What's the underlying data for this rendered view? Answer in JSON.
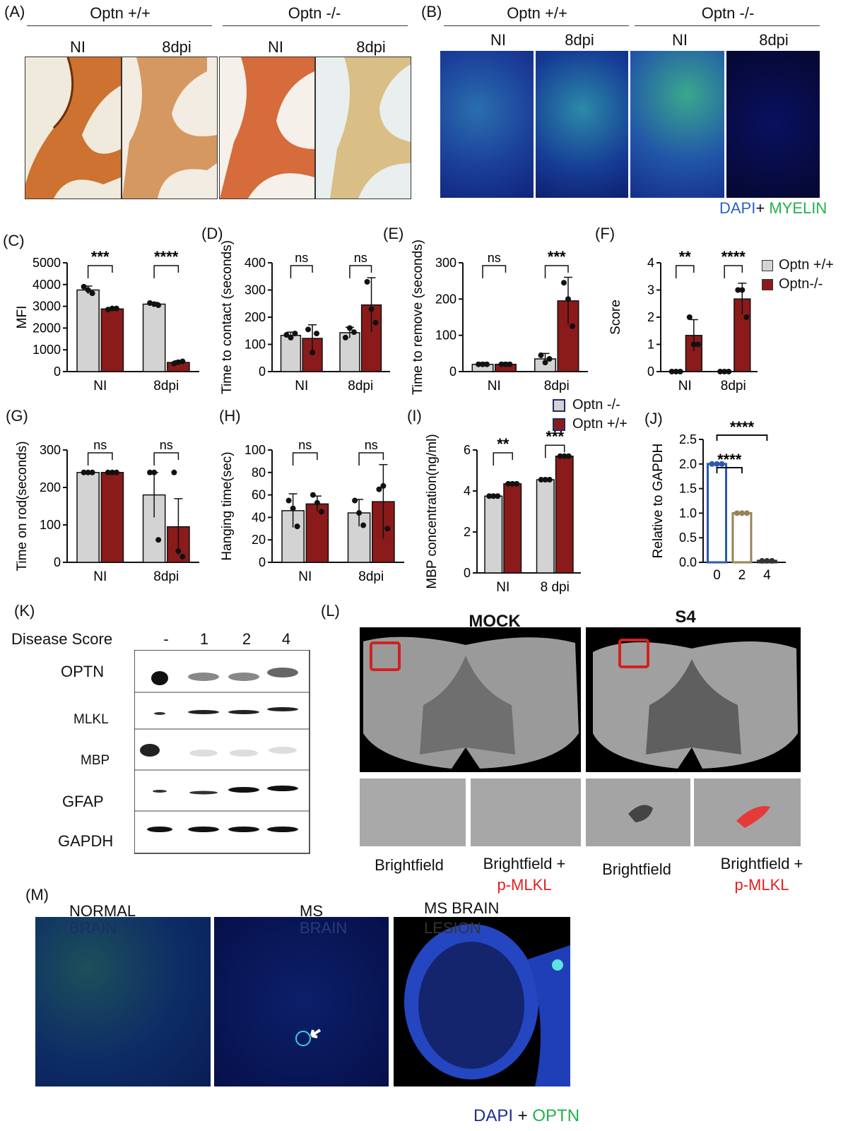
{
  "panel_labels": {
    "A": "(A)",
    "B": "(B)",
    "C": "(C)",
    "D": "(D)",
    "E": "(E)",
    "F": "(F)",
    "G": "(G)",
    "H": "(H)",
    "I": "(I)",
    "J": "(J)",
    "K": "(K)",
    "L": "(L)",
    "M": "(M)"
  },
  "panelA": {
    "group1": "Optn +/+",
    "group2": "Optn -/-",
    "ni": "NI",
    "dpi": "8dpi"
  },
  "panelB": {
    "group1": "Optn +/+",
    "group2": "Optn -/-",
    "ni": "NI",
    "dpi": "8dpi",
    "stain_dapi": "DAPI",
    "stain_plus": "+",
    "stain_myelin": " MYELIN"
  },
  "legend_top": {
    "item1": "Optn +/+",
    "item2": "Optn-/-",
    "color1": "#d3d3d3",
    "color2": "#8b1a1a"
  },
  "legend_mid": {
    "item1": "Optn -/-",
    "item2": "Optn +/+"
  },
  "panelK": {
    "header": "Disease Score",
    "lanes": [
      "-",
      "1",
      "2",
      "4"
    ],
    "rows": [
      "OPTN",
      "MLKL",
      "MBP",
      "GFAP",
      "GAPDH"
    ]
  },
  "panelL": {
    "mock": "MOCK",
    "s4": "S4",
    "bf1": "Brightfield",
    "bf2": "Brightfield +",
    "pmlkl": "p-MLKL",
    "bf3": "Brightfield",
    "bf4": "Brightfield +",
    "pmlkl2": "p-MLKL"
  },
  "panelM": {
    "t1a": "NORMAL",
    "t1b": "BRAIN",
    "t2a": "MS",
    "t2b": "BRAIN",
    "t3a": "MS BRAIN",
    "t3b": "LESION",
    "stain_dapi": "DAPI",
    "stain_plus": " + ",
    "stain_optn": "OPTN"
  },
  "chart_data": [
    {
      "id": "C",
      "type": "bar",
      "categories": [
        "NI",
        "8dpi"
      ],
      "ylabel": "MFI",
      "ylim": [
        0,
        5000
      ],
      "yticks": [
        0,
        1000,
        2000,
        3000,
        4000,
        5000
      ],
      "series": [
        {
          "values": [
            3750,
            3100
          ],
          "err": [
            180,
            80
          ],
          "points": [
            [
              3900,
              3750,
              3600
            ],
            [
              3150,
              3100,
              3050
            ]
          ]
        },
        {
          "values": [
            2880,
            420
          ],
          "err": [
            60,
            80
          ],
          "points": [
            [
              2850,
              2900,
              2900
            ],
            [
              370,
              430,
              470
            ]
          ]
        }
      ],
      "significance": [
        "***",
        "****"
      ]
    },
    {
      "id": "D",
      "type": "bar",
      "categories": [
        "NI",
        "8dpi"
      ],
      "ylabel": "Time to contact (seconds)",
      "ylim": [
        0,
        400
      ],
      "yticks": [
        0,
        100,
        200,
        300,
        400
      ],
      "series": [
        {
          "values": [
            133,
            143
          ],
          "err": [
            12,
            20
          ],
          "points": [
            [
              135,
              125,
              140
            ],
            [
              125,
              160,
              145
            ]
          ]
        },
        {
          "values": [
            122,
            245
          ],
          "err": [
            50,
            100
          ],
          "points": [
            [
              155,
              70,
              140
            ],
            [
              330,
              230,
              180
            ]
          ]
        }
      ],
      "significance": [
        "ns",
        "ns"
      ]
    },
    {
      "id": "E",
      "type": "bar",
      "categories": [
        "NI",
        "8dpi"
      ],
      "ylabel": "Time to remove (seconds)",
      "ylim": [
        0,
        300
      ],
      "yticks": [
        0,
        100,
        200,
        300
      ],
      "series": [
        {
          "values": [
            20,
            35
          ],
          "err": [
            5,
            15
          ],
          "points": [
            [
              20,
              20,
              20
            ],
            [
              45,
              25,
              35
            ]
          ]
        },
        {
          "values": [
            20,
            195
          ],
          "err": [
            5,
            65
          ],
          "points": [
            [
              20,
              20,
              20
            ],
            [
              245,
              200,
              125
            ]
          ]
        }
      ],
      "significance": [
        "ns",
        "***"
      ]
    },
    {
      "id": "F",
      "type": "bar",
      "categories": [
        "NI",
        "8dpi"
      ],
      "ylabel": "Score",
      "ylim": [
        0,
        4
      ],
      "yticks": [
        0,
        1,
        2,
        3,
        4
      ],
      "series": [
        {
          "values": [
            0,
            0
          ],
          "err": [
            0,
            0
          ],
          "points": [
            [
              0,
              0,
              0
            ],
            [
              0,
              0,
              0
            ]
          ]
        },
        {
          "values": [
            1.33,
            2.67
          ],
          "err": [
            0.58,
            0.58
          ],
          "points": [
            [
              2,
              1,
              1
            ],
            [
              3,
              3,
              2
            ]
          ]
        }
      ],
      "significance": [
        "**",
        "****"
      ]
    },
    {
      "id": "G",
      "type": "bar",
      "categories": [
        "NI",
        "8dpi"
      ],
      "ylabel": "Time on rod(seconds)",
      "ylim": [
        0,
        300
      ],
      "yticks": [
        0,
        100,
        200,
        300
      ],
      "series": [
        {
          "values": [
            240,
            180
          ],
          "err": [
            0,
            60
          ],
          "points": [
            [
              240,
              240,
              240
            ],
            [
              240,
              240,
              60
            ]
          ]
        },
        {
          "values": [
            240,
            95
          ],
          "err": [
            0,
            75
          ],
          "points": [
            [
              240,
              240,
              240
            ],
            [
              240,
              30,
              15
            ]
          ]
        }
      ],
      "significance": [
        "ns",
        "ns"
      ]
    },
    {
      "id": "H",
      "type": "bar",
      "categories": [
        "NI",
        "8dpi"
      ],
      "ylabel": "Hanging time(sec)",
      "ylim": [
        0,
        100
      ],
      "yticks": [
        0,
        20,
        40,
        60,
        80,
        100
      ],
      "series": [
        {
          "values": [
            46,
            44
          ],
          "err": [
            15,
            12
          ],
          "points": [
            [
              55,
              48,
              32
            ],
            [
              55,
              44,
              33
            ]
          ]
        },
        {
          "values": [
            52,
            54
          ],
          "err": [
            7,
            33
          ],
          "points": [
            [
              60,
              53,
              45
            ],
            [
              65,
              68,
              30
            ]
          ]
        }
      ],
      "significance": [
        "ns",
        "ns"
      ]
    },
    {
      "id": "I",
      "type": "bar",
      "categories": [
        "NI",
        "8 dpi"
      ],
      "ylabel": "MBP concentration(ng/ml)",
      "ylim": [
        0,
        6
      ],
      "yticks": [
        0,
        2,
        4,
        6
      ],
      "series": [
        {
          "values": [
            3.75,
            4.55
          ],
          "err": [
            0.05,
            0.05
          ],
          "points": [
            [
              3.75,
              3.75,
              3.75
            ],
            [
              4.55,
              4.55,
              4.55
            ]
          ]
        },
        {
          "values": [
            4.35,
            5.7
          ],
          "err": [
            0.05,
            0.05
          ],
          "points": [
            [
              4.35,
              4.35,
              4.35
            ],
            [
              5.7,
              5.7,
              5.7
            ]
          ]
        }
      ],
      "significance": [
        "**",
        "***"
      ]
    },
    {
      "id": "J",
      "type": "bar",
      "categories": [
        "0",
        "2",
        "4"
      ],
      "ylabel": "Relative to GAPDH",
      "ylim": [
        0,
        2.5
      ],
      "yticks": [
        "0.0",
        "0.5",
        "1.0",
        "1.5",
        "2.0",
        "2.5"
      ],
      "values": [
        2.0,
        1.0,
        0.03
      ],
      "colors": [
        "#2b59b3",
        "#9a8258",
        "#333333"
      ],
      "significance": [
        "****",
        "****"
      ]
    }
  ]
}
